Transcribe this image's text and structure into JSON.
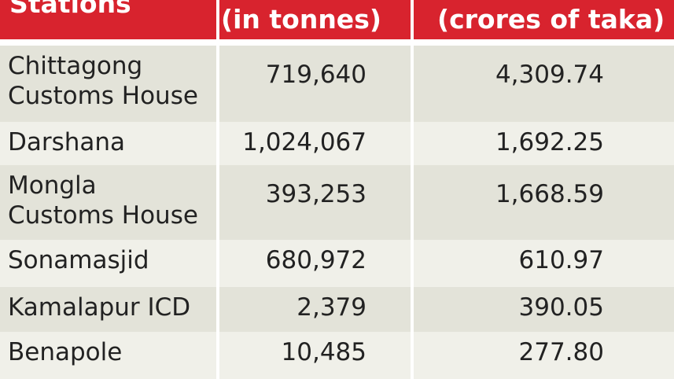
{
  "chart_data": {
    "type": "table",
    "columns": [
      "Stations",
      "(in tonnes)",
      "(crores of taka)"
    ],
    "rows": [
      {
        "station": "Chittagong Customs House",
        "lines": [
          "Chittagong",
          "Customs House"
        ],
        "tonnes": "719,640",
        "crores": "4,309.74"
      },
      {
        "station": "Darshana",
        "lines": [
          "Darshana"
        ],
        "tonnes": "1,024,067",
        "crores": "1,692.25"
      },
      {
        "station": "Mongla Customs House",
        "lines": [
          "Mongla",
          "Customs House"
        ],
        "tonnes": "393,253",
        "crores": "1,668.59"
      },
      {
        "station": "Sonamasjid",
        "lines": [
          "Sonamasjid"
        ],
        "tonnes": "680,972",
        "crores": "610.97"
      },
      {
        "station": "Kamalapur ICD",
        "lines": [
          "Kamalapur ICD"
        ],
        "tonnes": "2,379",
        "crores": "390.05"
      },
      {
        "station": "Benapole",
        "lines": [
          "Benapole"
        ],
        "tonnes": "10,485",
        "crores": "277.80"
      }
    ],
    "colors": {
      "header": "#d8232e",
      "row_odd": "#e3e3d9",
      "row_even": "#f0f0e9"
    }
  }
}
